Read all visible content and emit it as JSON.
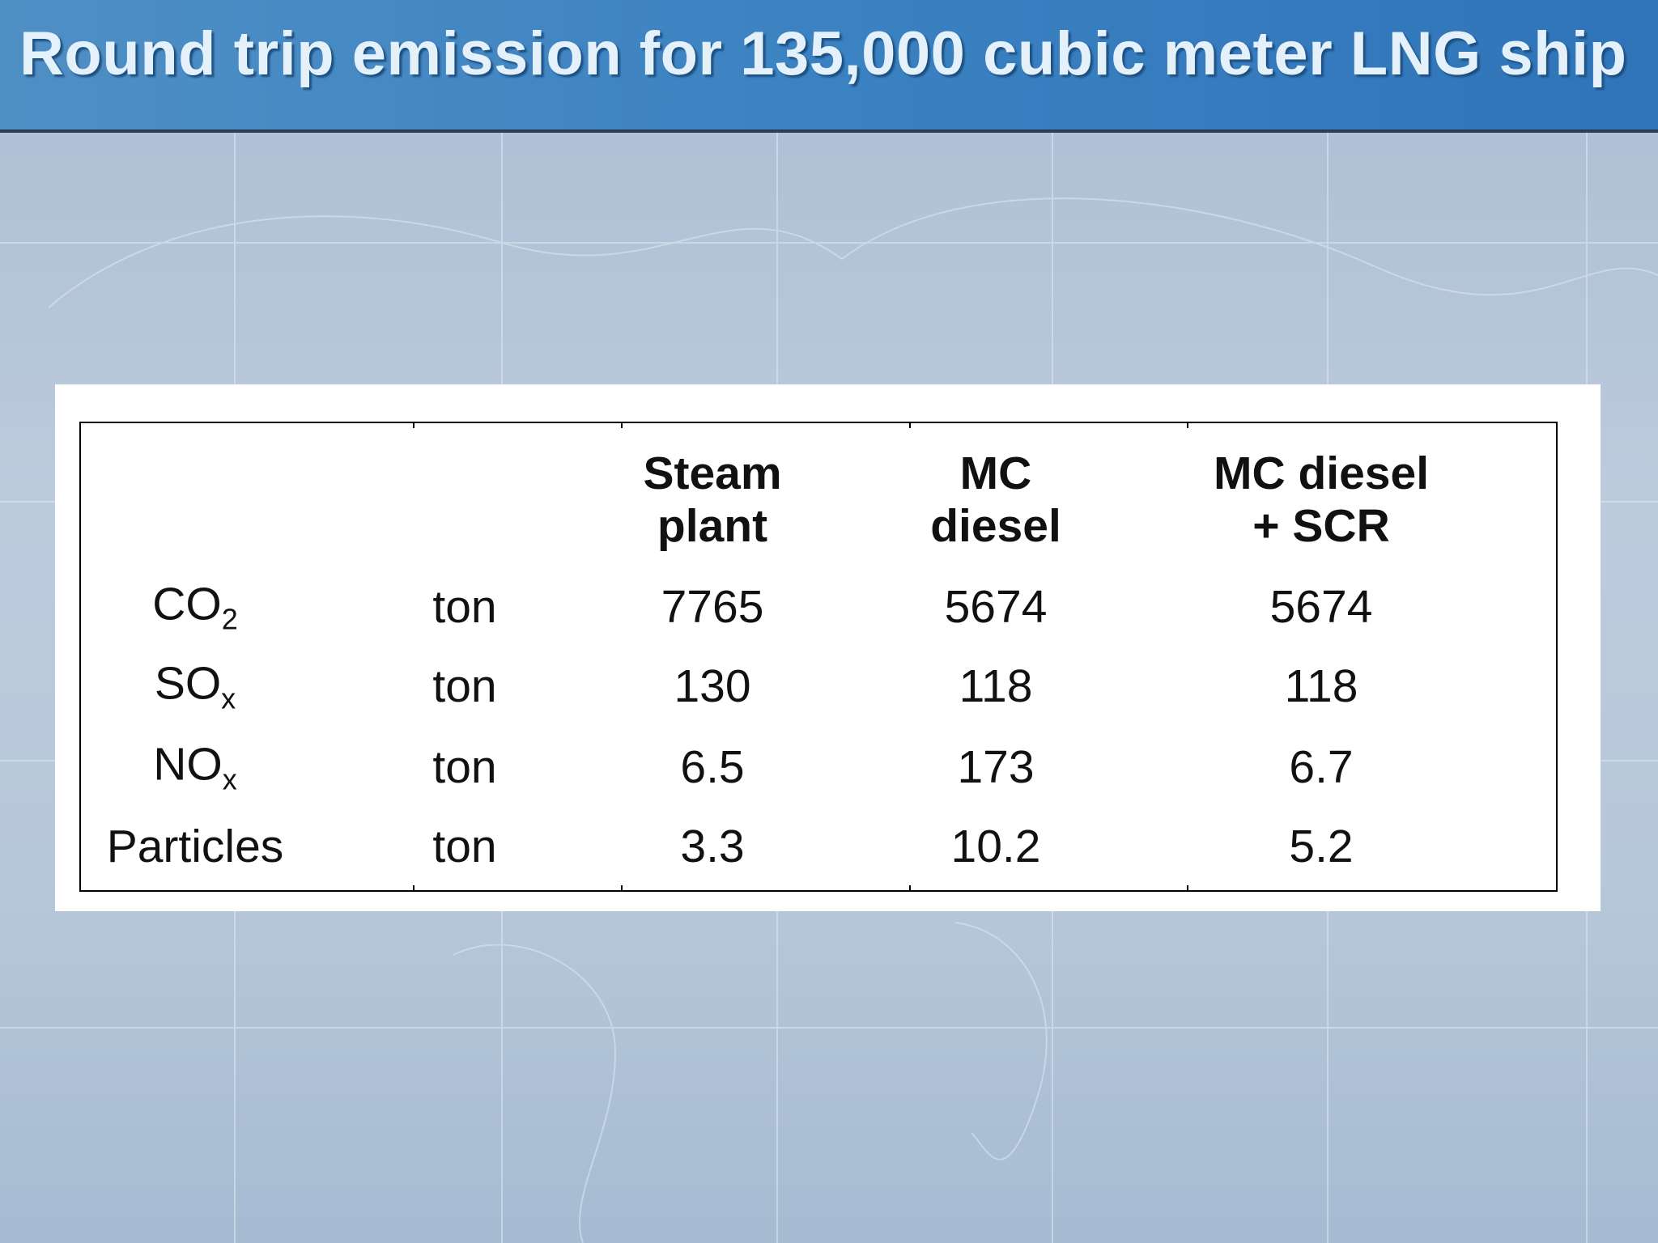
{
  "title": "Round trip emission for 135,000 cubic meter LNG ship",
  "table": {
    "header": [
      [
        "Steam",
        "plant"
      ],
      [
        "MC",
        "diesel"
      ],
      [
        "MC diesel",
        "+ SCR"
      ]
    ],
    "rows": [
      [
        {
          "base": "CO",
          "sub": "2"
        },
        "ton",
        7765,
        5674,
        5674
      ],
      [
        {
          "base": "SO",
          "sub": "x"
        },
        "ton",
        130,
        118,
        118
      ],
      [
        {
          "base": "NO",
          "sub": "x"
        },
        "ton",
        6.5,
        173,
        6.7
      ],
      [
        "Particles",
        "ton",
        3.3,
        10.2,
        5.2
      ]
    ]
  }
}
